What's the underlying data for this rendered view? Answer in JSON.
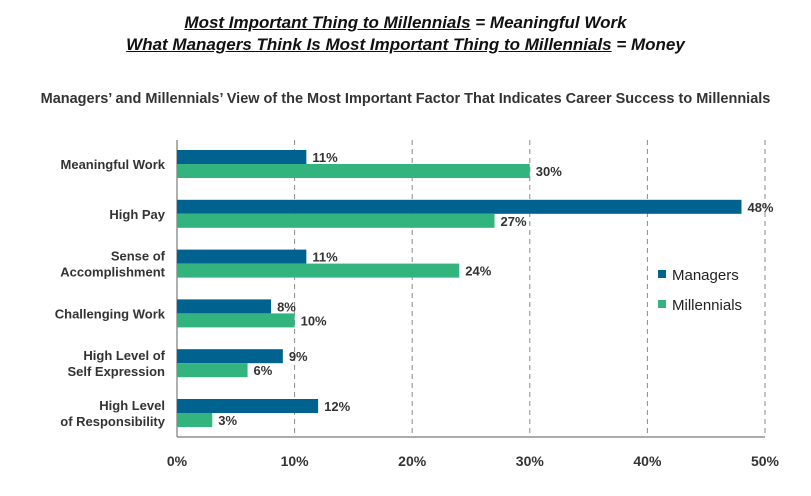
{
  "headline": {
    "line1_underlined": "Most Important Thing to Millennials",
    "line1_rest": " = Meaningful Work",
    "line2_underlined": "What Managers Think Is Most Important Thing to Millennials",
    "line2_rest": " = Money"
  },
  "colors": {
    "managers": "#00628F",
    "millennials": "#33B37E",
    "grid": "#8a8a8a",
    "axis": "#7a7a7a"
  },
  "chart_data": {
    "type": "bar",
    "orientation": "horizontal",
    "title": "Managers’ and Millennials’ View of the Most Important Factor That Indicates Career Success to Millennials",
    "categories": [
      [
        "Meaningful Work"
      ],
      [
        "High Pay"
      ],
      [
        "Sense of",
        "Accomplishment"
      ],
      [
        "Challenging Work"
      ],
      [
        "High Level of",
        "Self Expression"
      ],
      [
        "High Level",
        "of Responsibility"
      ]
    ],
    "series": [
      {
        "name": "Managers",
        "values": [
          11,
          48,
          11,
          8,
          9,
          12
        ]
      },
      {
        "name": "Millennials",
        "values": [
          30,
          27,
          24,
          10,
          6,
          3
        ]
      }
    ],
    "value_suffix": "%",
    "xlim": [
      0,
      50
    ],
    "xticks": [
      0,
      10,
      20,
      30,
      40,
      50
    ],
    "xtick_labels": [
      "0%",
      "10%",
      "20%",
      "30%",
      "40%",
      "50%"
    ],
    "grid": "vertical dashed",
    "legend_position": "right"
  }
}
